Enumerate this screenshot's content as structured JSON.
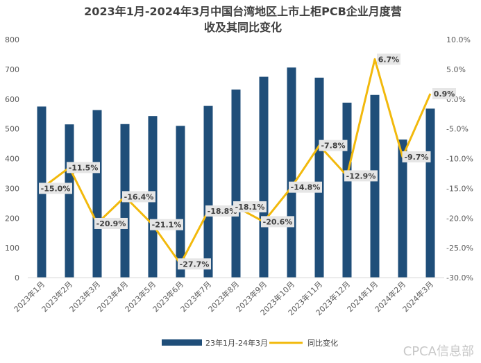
{
  "chart_data": {
    "type": "bar",
    "title_lines": [
      "2023年1月-2024年3月中国台湾地区上市上柜PCB企业月度营",
      "收及其同比变化"
    ],
    "categories": [
      "2023年1月",
      "2023年2月",
      "2023年3月",
      "2023年4月",
      "2023年5月",
      "2023年6月",
      "2023年7月",
      "2023年8月",
      "2023年9月",
      "2023年10月",
      "2023年11月",
      "2023年12月",
      "2024年1月",
      "2024年2月",
      "2024年3月"
    ],
    "series": [
      {
        "name": "23年1月-24年3月",
        "kind": "bar",
        "axis": "left",
        "color": "#1f4e79",
        "values": [
          575,
          515,
          563,
          516,
          543,
          510,
          577,
          632,
          675,
          706,
          672,
          588,
          614,
          464,
          568
        ]
      },
      {
        "name": "同比变化",
        "kind": "line",
        "axis": "right",
        "color": "#f2b90c",
        "values": [
          -15.0,
          -11.5,
          -20.9,
          -16.4,
          -21.1,
          -27.7,
          -18.8,
          -18.1,
          -20.6,
          -14.8,
          -7.8,
          -12.9,
          6.7,
          -9.7,
          0.9
        ],
        "labels": [
          "-15.0%",
          "-11.5%",
          "-20.9%",
          "-16.4%",
          "-21.1%",
          "-27.7%",
          "-18.8%",
          "-18.1%",
          "-20.6%",
          "-14.8%",
          "-7.8%",
          "-12.9%",
          "6.7%",
          "-9.7%",
          "0.9%"
        ]
      }
    ],
    "y_left": {
      "min": 0,
      "max": 800,
      "ticks": [
        "0",
        "100",
        "200",
        "300",
        "400",
        "500",
        "600",
        "700",
        "800"
      ]
    },
    "y_right": {
      "min": -30,
      "max": 10,
      "ticks": [
        "-30.0%",
        "-25.0%",
        "-20.0%",
        "-15.0%",
        "-10.0%",
        "-5.0%",
        "0.0%",
        "5.0%",
        "10.0%"
      ]
    },
    "legend_position": "bottom",
    "grid": false
  },
  "watermark": "CPCA信息部"
}
